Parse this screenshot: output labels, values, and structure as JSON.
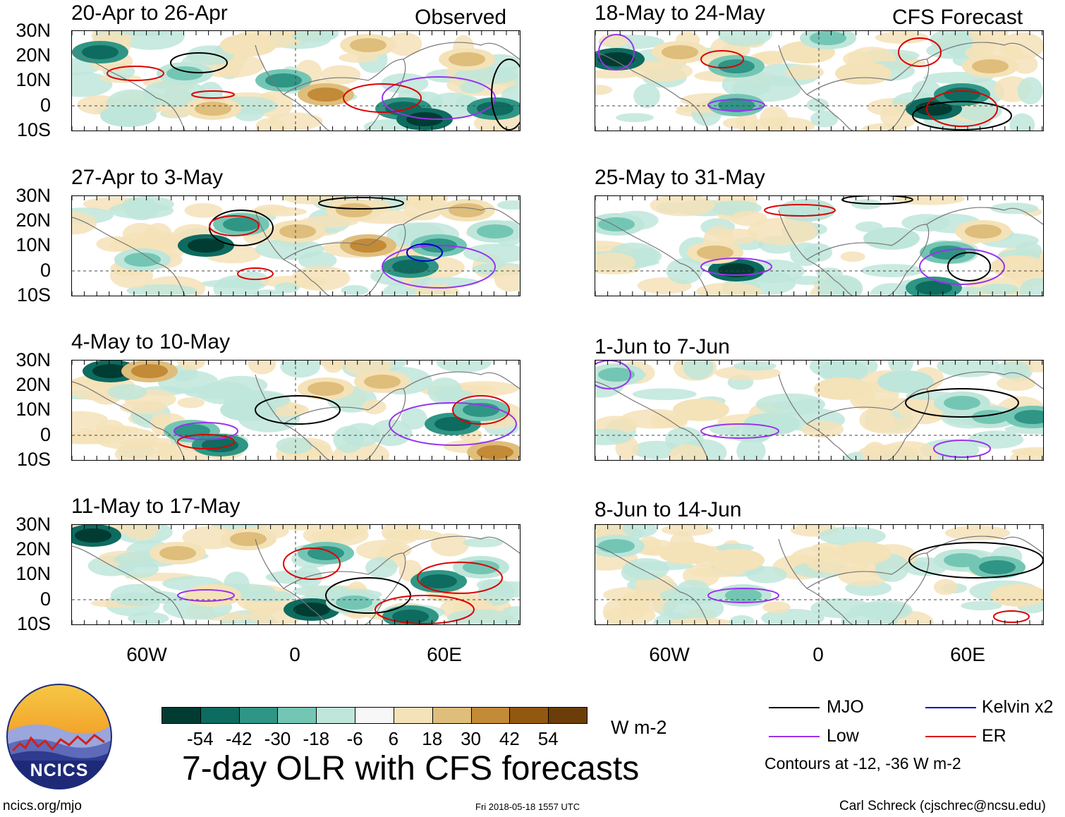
{
  "panels": [
    {
      "id": "p1",
      "title": "20-Apr to 26-Apr",
      "tag": "Observed",
      "kind": "observed"
    },
    {
      "id": "p2",
      "title": "27-Apr to 3-May",
      "tag": "",
      "kind": "observed"
    },
    {
      "id": "p3",
      "title": "4-May to 10-May",
      "tag": "",
      "kind": "observed"
    },
    {
      "id": "p4",
      "title": "11-May to 17-May",
      "tag": "",
      "kind": "observed"
    },
    {
      "id": "p5",
      "title": "18-May to 24-May",
      "tag": "CFS Forecast",
      "kind": "forecast"
    },
    {
      "id": "p6",
      "title": "25-May to 31-May",
      "tag": "",
      "kind": "forecast"
    },
    {
      "id": "p7",
      "title": "1-Jun to 7-Jun",
      "tag": "",
      "kind": "forecast"
    },
    {
      "id": "p8",
      "title": "8-Jun to 14-Jun",
      "tag": "",
      "kind": "forecast"
    }
  ],
  "y_labels": [
    "30N",
    "20N",
    "10N",
    "0",
    "10S"
  ],
  "x_labels": [
    "60W",
    "0",
    "60E"
  ],
  "colorbar": {
    "colors": [
      "#013c33",
      "#0d6b5f",
      "#2f9585",
      "#74c6b4",
      "#bfe6da",
      "#f7f7f7",
      "#f4e2b8",
      "#dfbd7b",
      "#c38a37",
      "#935810",
      "#6b3e09"
    ],
    "labels": [
      "-54",
      "-42",
      "-30",
      "-18",
      "-6",
      "6",
      "18",
      "30",
      "42",
      "54"
    ],
    "units": "W m-2"
  },
  "legend": {
    "items": [
      {
        "name": "MJO",
        "color": "#000000"
      },
      {
        "name": "Kelvin x2",
        "color": "#0000cc"
      },
      {
        "name": "Low",
        "color": "#9933ee"
      },
      {
        "name": "ER",
        "color": "#dd0000"
      }
    ],
    "note": "Contours at -12, -36 W m-2"
  },
  "footer": {
    "title": "7-day OLR with CFS forecasts",
    "left": "ncics.org/mjo",
    "timestamp": "Fri 2018-05-18 1557 UTC",
    "credit": "Carl Schreck (cjschrec@ncsu.edu)",
    "logo_text": "NCICS"
  }
}
